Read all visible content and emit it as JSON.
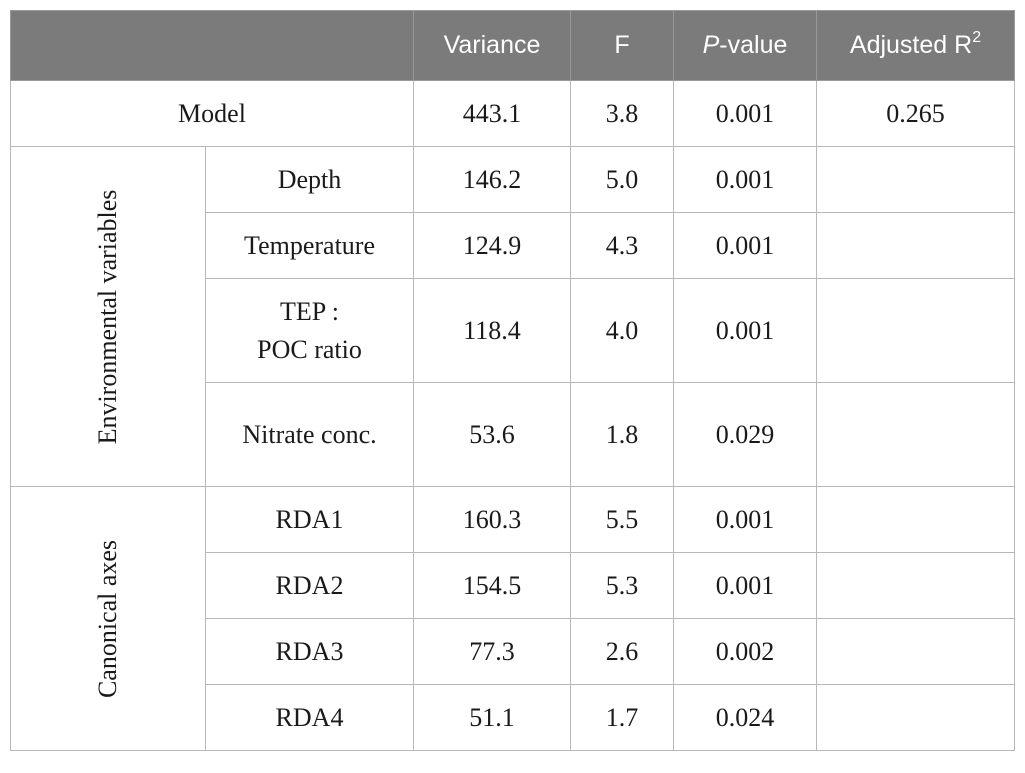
{
  "header": {
    "col_empty": "",
    "variance": "Variance",
    "f": "F",
    "p_italic": "P",
    "p_rest": "-value",
    "adj_r": "Adjusted R",
    "adj_sup": "2"
  },
  "model_row": {
    "label": "Model",
    "variance": "443.1",
    "f": "3.8",
    "p": "0.001",
    "adj_r2": "0.265"
  },
  "groups": [
    {
      "label": "Environmental variables",
      "rows": [
        {
          "label": "Depth",
          "variance": "146.2",
          "f": "5.0",
          "p": "0.001",
          "adj_r2": ""
        },
        {
          "label": "Temperature",
          "variance": "124.9",
          "f": "4.3",
          "p": "0.001",
          "adj_r2": ""
        },
        {
          "label_line1": "TEP :",
          "label_line2": "POC ratio",
          "variance": "118.4",
          "f": "4.0",
          "p": "0.001",
          "adj_r2": ""
        },
        {
          "label": "Nitrate conc.",
          "variance": "53.6",
          "f": "1.8",
          "p": "0.029",
          "adj_r2": ""
        }
      ]
    },
    {
      "label": "Canonical axes",
      "rows": [
        {
          "label": "RDA1",
          "variance": "160.3",
          "f": "5.5",
          "p": "0.001",
          "adj_r2": ""
        },
        {
          "label": "RDA2",
          "variance": "154.5",
          "f": "5.3",
          "p": "0.001",
          "adj_r2": ""
        },
        {
          "label": "RDA3",
          "variance": "77.3",
          "f": "2.6",
          "p": "0.002",
          "adj_r2": ""
        },
        {
          "label": "RDA4",
          "variance": "51.1",
          "f": "1.7",
          "p": "0.024",
          "adj_r2": ""
        }
      ]
    }
  ]
}
